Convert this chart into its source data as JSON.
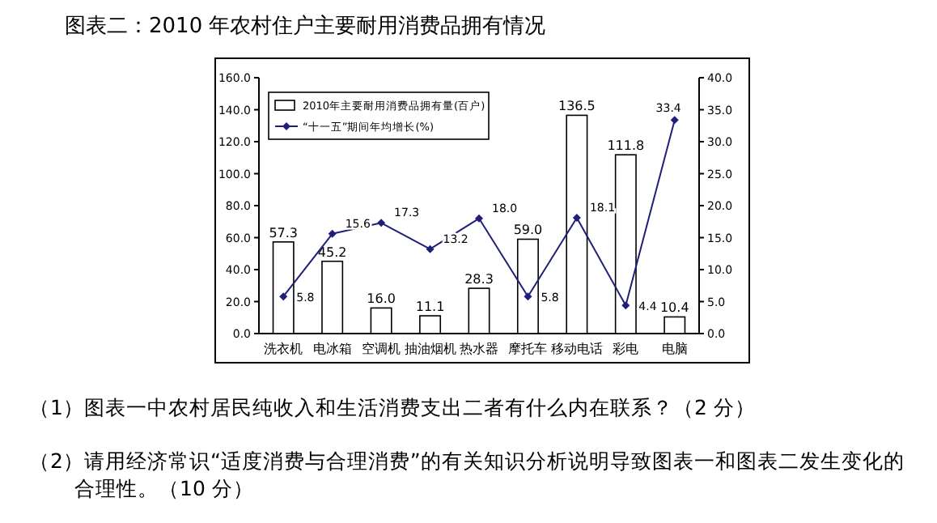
{
  "chart_data": {
    "type": "bar",
    "title": "图表二：2010 年农村住户主要耐用消费品拥有情况",
    "categories": [
      "洗衣机",
      "电冰箱",
      "空调机",
      "抽油烟机",
      "热水器",
      "摩托车",
      "移动电话",
      "彩电",
      "电脑"
    ],
    "series": [
      {
        "name": "2010年主要耐用消费品拥有量(百户)",
        "type": "bar",
        "color": "#ffffff",
        "values": [
          57.3,
          45.2,
          16.0,
          11.1,
          28.3,
          59.0,
          136.5,
          111.8,
          10.4
        ],
        "value_labels": [
          "57.3",
          "45.2",
          "16.0",
          "11.1",
          "28.3",
          "59.0",
          "136.5",
          "111.8",
          "10.4"
        ]
      },
      {
        "name": "“十一五”期间年均增长(%)",
        "type": "line",
        "axis": "y2",
        "color": "#1f1f7a",
        "marker": "diamond",
        "values": [
          5.8,
          15.6,
          17.3,
          13.2,
          18.0,
          5.8,
          18.1,
          4.4,
          33.4
        ],
        "value_labels": [
          "5.8",
          "15.6",
          "17.3",
          "13.2",
          "18.0",
          "5.8",
          "18.1",
          "4.4",
          "33.4"
        ]
      }
    ],
    "ylim": [
      0,
      160
    ],
    "yticks": [
      {
        "value": 0,
        "label": "0.0"
      },
      {
        "value": 20,
        "label": "20.0"
      },
      {
        "value": 40,
        "label": "40.0"
      },
      {
        "value": 60,
        "label": "60.0"
      },
      {
        "value": 80,
        "label": "80.0"
      },
      {
        "value": 100,
        "label": "100.0"
      },
      {
        "value": 120,
        "label": "120.0"
      },
      {
        "value": 140,
        "label": "140.0"
      },
      {
        "value": 160,
        "label": "160.0"
      }
    ],
    "y2lim": [
      0,
      40
    ],
    "y2ticks": [
      {
        "value": 0,
        "label": "0.0"
      },
      {
        "value": 5,
        "label": "5.0"
      },
      {
        "value": 10,
        "label": "10.0"
      },
      {
        "value": 15,
        "label": "15.0"
      },
      {
        "value": 20,
        "label": "20.0"
      },
      {
        "value": 25,
        "label": "25.0"
      },
      {
        "value": 30,
        "label": "30.0"
      },
      {
        "value": 35,
        "label": "35.0"
      },
      {
        "value": 40,
        "label": "40.0"
      }
    ],
    "legend": "top left",
    "grid": false,
    "annotations": [
      "（1）图表一中农村居民纯收入和生活消费支出二者有什么内在联系？（2 分）",
      "（2）请用经济常识“适度消费与合理消费”的有关知识分析说明导致图表一和图表二发生变化的合理性。（10 分）"
    ]
  }
}
